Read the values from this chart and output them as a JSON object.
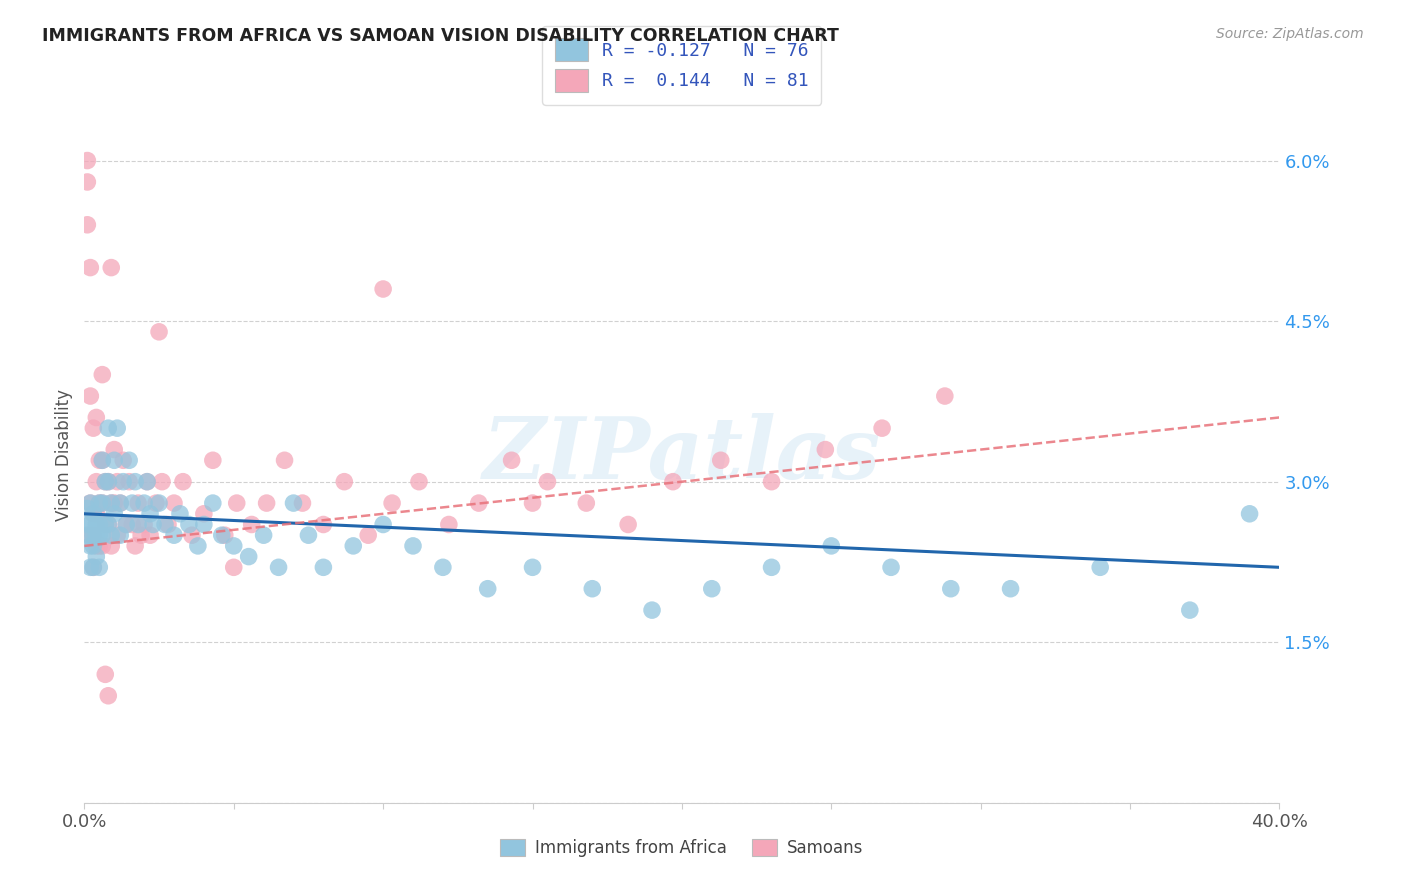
{
  "title": "IMMIGRANTS FROM AFRICA VS SAMOAN VISION DISABILITY CORRELATION CHART",
  "source_text": "Source: ZipAtlas.com",
  "ylabel": "Vision Disability",
  "xlim": [
    0.0,
    0.4
  ],
  "ylim": [
    0.0,
    0.065
  ],
  "xticks": [
    0.0,
    0.05,
    0.1,
    0.15,
    0.2,
    0.25,
    0.3,
    0.35,
    0.4
  ],
  "xtick_labels_show": [
    "0.0%",
    "",
    "",
    "",
    "",
    "",
    "",
    "",
    "40.0%"
  ],
  "yticks": [
    0.0,
    0.015,
    0.03,
    0.045,
    0.06
  ],
  "ytick_labels": [
    "",
    "1.5%",
    "3.0%",
    "4.5%",
    "6.0%"
  ],
  "legend_line1": "R = -0.127   N = 76",
  "legend_line2": "R =  0.144   N = 81",
  "color_blue": "#92c5de",
  "color_pink": "#f4a7b9",
  "color_blue_line": "#2166ac",
  "color_pink_line": "#d6604d",
  "color_pink_line_alt": "#e8727a",
  "watermark": "ZIPatlas",
  "series1_label": "Immigrants from Africa",
  "series2_label": "Samoans",
  "blue_scatter_x": [
    0.001,
    0.001,
    0.001,
    0.002,
    0.002,
    0.002,
    0.002,
    0.003,
    0.003,
    0.003,
    0.003,
    0.004,
    0.004,
    0.004,
    0.005,
    0.005,
    0.005,
    0.005,
    0.006,
    0.006,
    0.006,
    0.007,
    0.007,
    0.008,
    0.008,
    0.008,
    0.009,
    0.009,
    0.01,
    0.01,
    0.011,
    0.012,
    0.012,
    0.013,
    0.014,
    0.015,
    0.016,
    0.017,
    0.018,
    0.02,
    0.021,
    0.022,
    0.023,
    0.025,
    0.027,
    0.03,
    0.032,
    0.035,
    0.038,
    0.04,
    0.043,
    0.046,
    0.05,
    0.055,
    0.06,
    0.065,
    0.07,
    0.075,
    0.08,
    0.09,
    0.1,
    0.11,
    0.12,
    0.135,
    0.15,
    0.17,
    0.19,
    0.21,
    0.23,
    0.25,
    0.27,
    0.29,
    0.31,
    0.34,
    0.37,
    0.39
  ],
  "blue_scatter_y": [
    0.0275,
    0.026,
    0.025,
    0.028,
    0.026,
    0.024,
    0.022,
    0.027,
    0.025,
    0.024,
    0.022,
    0.026,
    0.025,
    0.023,
    0.028,
    0.026,
    0.025,
    0.022,
    0.032,
    0.028,
    0.025,
    0.03,
    0.026,
    0.035,
    0.03,
    0.026,
    0.028,
    0.025,
    0.032,
    0.027,
    0.035,
    0.028,
    0.025,
    0.03,
    0.026,
    0.032,
    0.028,
    0.03,
    0.026,
    0.028,
    0.03,
    0.027,
    0.026,
    0.028,
    0.026,
    0.025,
    0.027,
    0.026,
    0.024,
    0.026,
    0.028,
    0.025,
    0.024,
    0.023,
    0.025,
    0.022,
    0.028,
    0.025,
    0.022,
    0.024,
    0.026,
    0.024,
    0.022,
    0.02,
    0.022,
    0.02,
    0.018,
    0.02,
    0.022,
    0.024,
    0.022,
    0.02,
    0.02,
    0.022,
    0.018,
    0.027
  ],
  "pink_scatter_x": [
    0.001,
    0.001,
    0.001,
    0.002,
    0.002,
    0.002,
    0.002,
    0.003,
    0.003,
    0.003,
    0.003,
    0.004,
    0.004,
    0.004,
    0.004,
    0.005,
    0.005,
    0.005,
    0.006,
    0.006,
    0.006,
    0.007,
    0.007,
    0.008,
    0.008,
    0.009,
    0.009,
    0.01,
    0.01,
    0.011,
    0.011,
    0.012,
    0.013,
    0.014,
    0.015,
    0.016,
    0.017,
    0.018,
    0.019,
    0.02,
    0.021,
    0.022,
    0.024,
    0.026,
    0.028,
    0.03,
    0.033,
    0.036,
    0.04,
    0.043,
    0.047,
    0.051,
    0.056,
    0.061,
    0.067,
    0.073,
    0.08,
    0.087,
    0.095,
    0.103,
    0.112,
    0.122,
    0.132,
    0.143,
    0.155,
    0.168,
    0.182,
    0.197,
    0.213,
    0.23,
    0.248,
    0.267,
    0.288,
    0.025,
    0.008,
    0.009,
    0.007,
    0.006,
    0.05,
    0.1,
    0.15
  ],
  "pink_scatter_y": [
    0.058,
    0.054,
    0.06,
    0.05,
    0.038,
    0.028,
    0.025,
    0.035,
    0.027,
    0.025,
    0.022,
    0.036,
    0.03,
    0.027,
    0.024,
    0.032,
    0.028,
    0.024,
    0.032,
    0.028,
    0.024,
    0.03,
    0.026,
    0.03,
    0.026,
    0.028,
    0.024,
    0.033,
    0.028,
    0.03,
    0.025,
    0.028,
    0.032,
    0.026,
    0.03,
    0.026,
    0.024,
    0.028,
    0.025,
    0.026,
    0.03,
    0.025,
    0.028,
    0.03,
    0.026,
    0.028,
    0.03,
    0.025,
    0.027,
    0.032,
    0.025,
    0.028,
    0.026,
    0.028,
    0.032,
    0.028,
    0.026,
    0.03,
    0.025,
    0.028,
    0.03,
    0.026,
    0.028,
    0.032,
    0.03,
    0.028,
    0.026,
    0.03,
    0.032,
    0.03,
    0.033,
    0.035,
    0.038,
    0.044,
    0.01,
    0.05,
    0.012,
    0.04,
    0.022,
    0.048,
    0.028
  ],
  "blue_trend_x": [
    0.0,
    0.4
  ],
  "blue_trend_y": [
    0.027,
    0.022
  ],
  "pink_trend_x": [
    0.0,
    0.4
  ],
  "pink_trend_y": [
    0.024,
    0.036
  ]
}
